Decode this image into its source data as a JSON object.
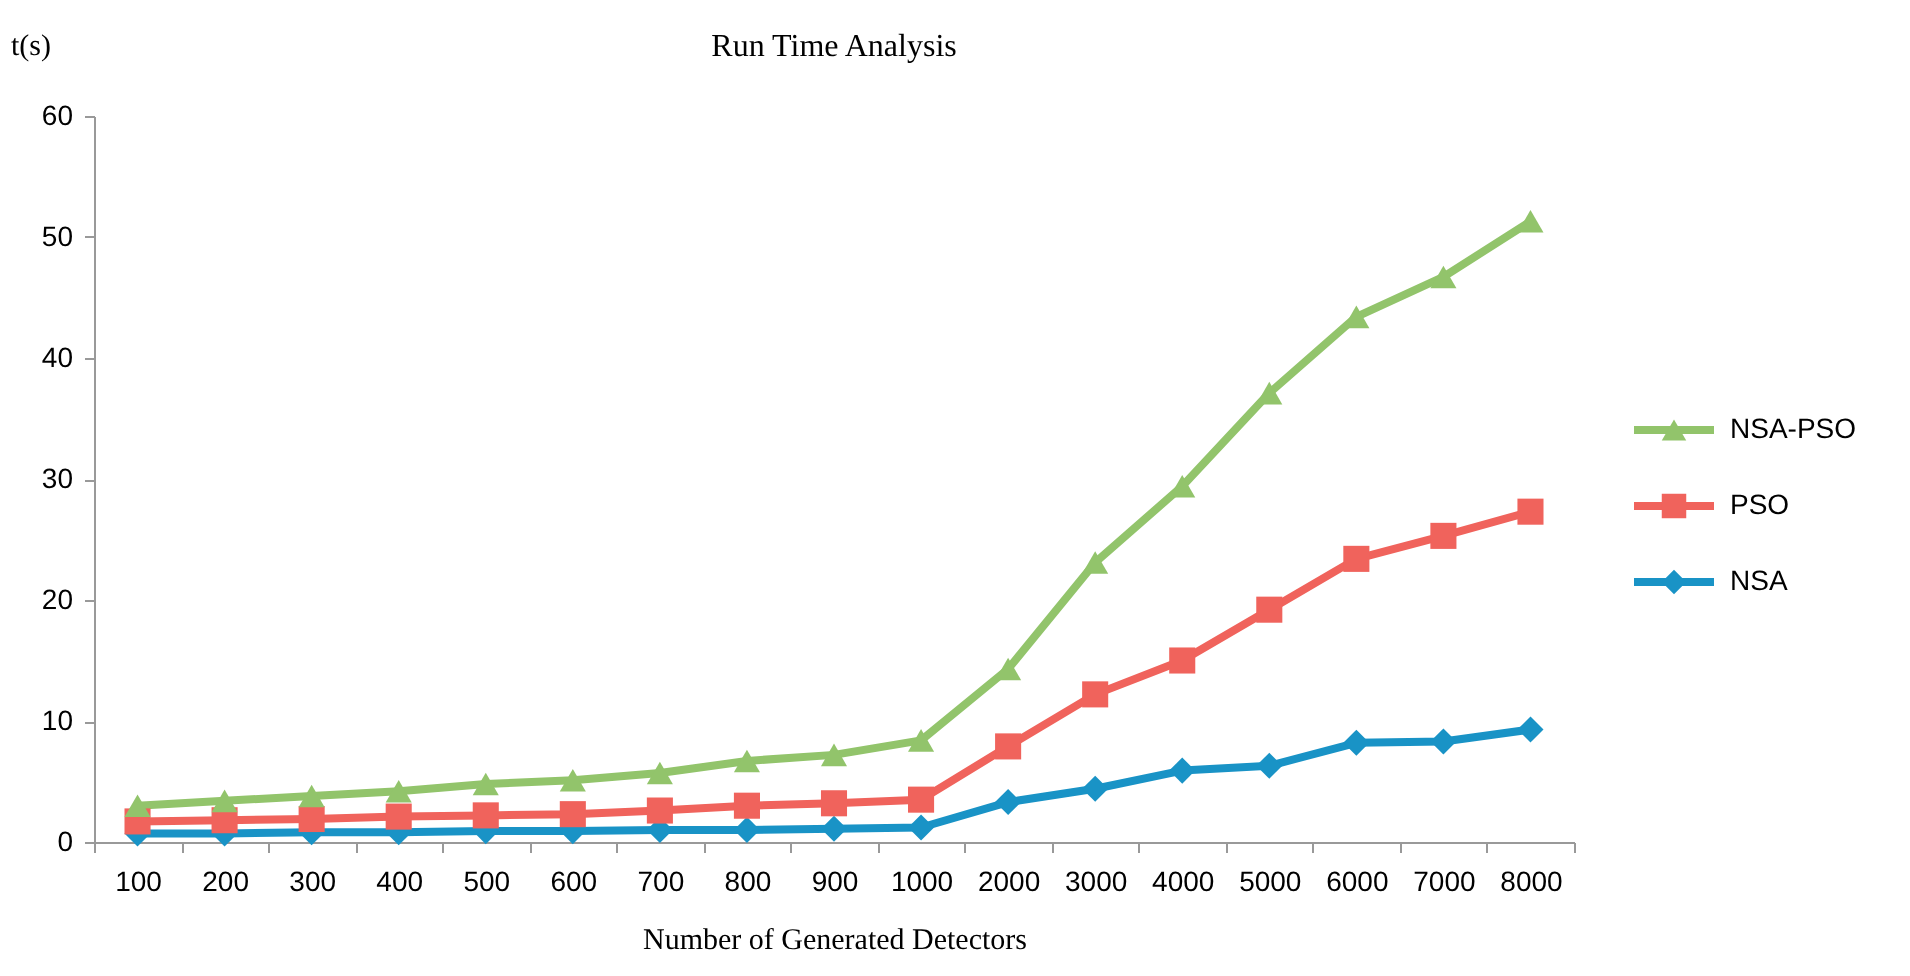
{
  "chart_data": {
    "type": "line",
    "title": "Run Time Analysis",
    "xlabel": "Number of Generated Detectors",
    "ylabel": "t(s)",
    "categories": [
      "100",
      "200",
      "300",
      "400",
      "500",
      "600",
      "700",
      "800",
      "900",
      "1000",
      "2000",
      "3000",
      "4000",
      "5000",
      "6000",
      "7000",
      "8000"
    ],
    "series": [
      {
        "name": "NSA-PSO",
        "color": "#92c46b",
        "marker": "triangle",
        "values": [
          3.0,
          3.4,
          3.8,
          4.2,
          4.8,
          5.1,
          5.7,
          6.7,
          7.2,
          8.4,
          14.3,
          23.1,
          29.4,
          37.1,
          43.4,
          46.7,
          51.3
        ]
      },
      {
        "name": "PSO",
        "color": "#f0635c",
        "marker": "square",
        "values": [
          1.7,
          1.8,
          1.9,
          2.1,
          2.2,
          2.3,
          2.6,
          3.0,
          3.2,
          3.5,
          7.9,
          12.2,
          15.0,
          19.2,
          23.4,
          25.3,
          27.3
        ]
      },
      {
        "name": "NSA",
        "color": "#1993c6",
        "marker": "diamond",
        "values": [
          0.7,
          0.7,
          0.8,
          0.8,
          0.9,
          0.9,
          1.0,
          1.0,
          1.1,
          1.2,
          3.3,
          4.4,
          5.9,
          6.3,
          8.2,
          8.3,
          9.3
        ]
      }
    ],
    "ylim": [
      0,
      60
    ],
    "yticks": [
      0,
      10,
      20,
      30,
      40,
      50,
      60
    ],
    "grid": false,
    "legend": "right",
    "line_style": "solid"
  }
}
